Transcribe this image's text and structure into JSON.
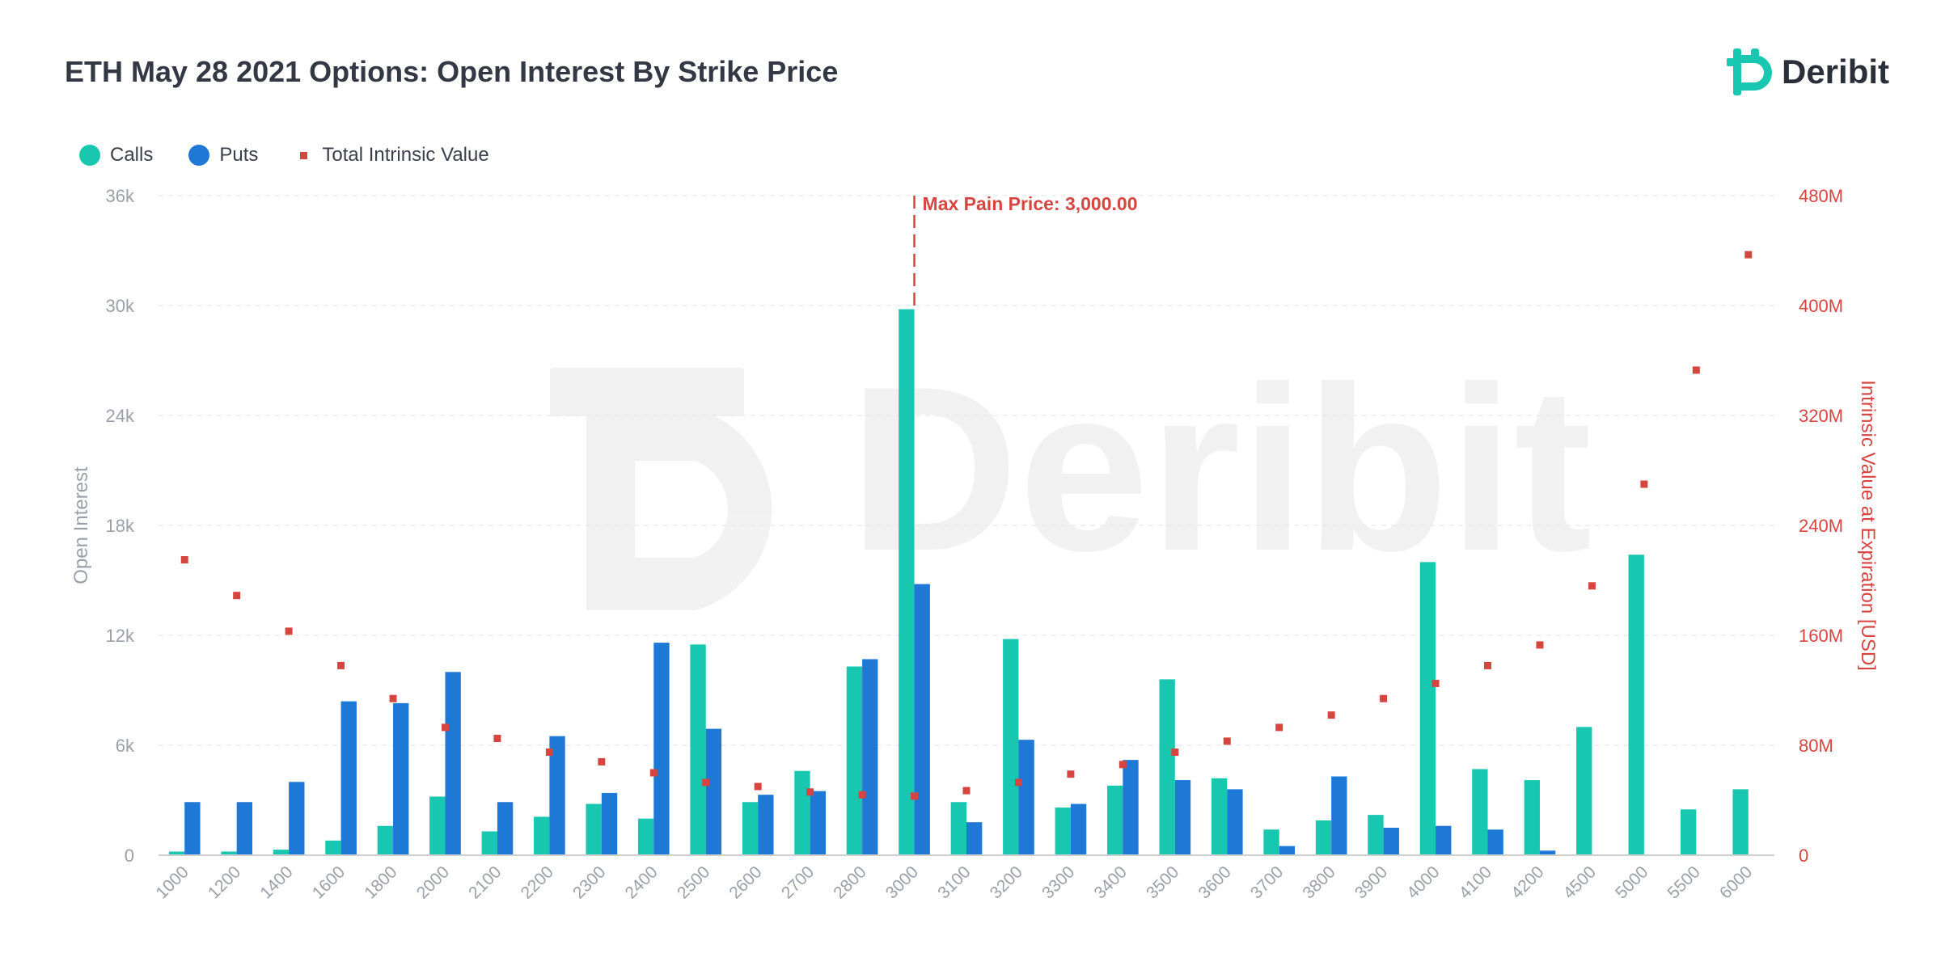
{
  "colors": {
    "calls": "#17c7b0",
    "puts": "#1e78d6",
    "intrinsic": "#d6453f",
    "title": "#333844",
    "axis": "#999999"
  },
  "brand": {
    "name": "Deribit",
    "logo": "deribit-logo-icon"
  },
  "legend": {
    "calls": "Calls",
    "puts": "Puts",
    "intrinsic": "Total Intrinsic Value"
  },
  "chart_data": {
    "type": "bar",
    "title": "ETH May 28 2021 Options: Open Interest By Strike Price",
    "ylabel": "Open Interest",
    "y2label": "Intrinsic Value at Expiration [USD]",
    "ylim": [
      0,
      36000
    ],
    "y2lim": [
      0,
      480000000
    ],
    "yticks": [
      "0",
      "6k",
      "12k",
      "18k",
      "24k",
      "30k",
      "36k"
    ],
    "y2ticks": [
      "0",
      "80M",
      "160M",
      "240M",
      "320M",
      "400M",
      "480M"
    ],
    "grid": true,
    "legend_position": "top-left",
    "annotation": {
      "label": "Max Pain Price: 3,000.00",
      "category": "3000"
    },
    "categories": [
      "1000",
      "1200",
      "1400",
      "1600",
      "1800",
      "2000",
      "2100",
      "2200",
      "2300",
      "2400",
      "2500",
      "2600",
      "2700",
      "2800",
      "3000",
      "3100",
      "3200",
      "3300",
      "3400",
      "3500",
      "3600",
      "3700",
      "3800",
      "3900",
      "4000",
      "4100",
      "4200",
      "4500",
      "5000",
      "5500",
      "6000"
    ],
    "series": [
      {
        "name": "Calls",
        "kind": "bar",
        "values": [
          200,
          200,
          300,
          800,
          1600,
          3200,
          1300,
          2100,
          2800,
          2000,
          11500,
          2900,
          4600,
          10300,
          29800,
          2900,
          11800,
          2600,
          3800,
          9600,
          4200,
          1400,
          1900,
          2200,
          16000,
          4700,
          4100,
          7000,
          16400,
          2500,
          3600
        ]
      },
      {
        "name": "Puts",
        "kind": "bar",
        "values": [
          2900,
          2900,
          4000,
          8400,
          8300,
          10000,
          2900,
          6500,
          3400,
          11600,
          6900,
          3300,
          3500,
          10700,
          14800,
          1800,
          6300,
          2800,
          5200,
          4100,
          3600,
          500,
          4300,
          1500,
          1600,
          1400,
          250,
          0,
          0,
          0,
          0
        ]
      },
      {
        "name": "Total Intrinsic Value",
        "kind": "scatter",
        "axis": "right",
        "values": [
          215000000,
          189000000,
          163000000,
          138000000,
          114000000,
          93000000,
          85000000,
          75000000,
          68000000,
          60000000,
          53000000,
          50000000,
          46000000,
          44000000,
          43000000,
          47000000,
          53000000,
          59000000,
          66000000,
          75000000,
          83000000,
          93000000,
          102000000,
          114000000,
          125000000,
          138000000,
          153000000,
          196000000,
          270000000,
          353000000,
          437000000
        ]
      }
    ]
  }
}
